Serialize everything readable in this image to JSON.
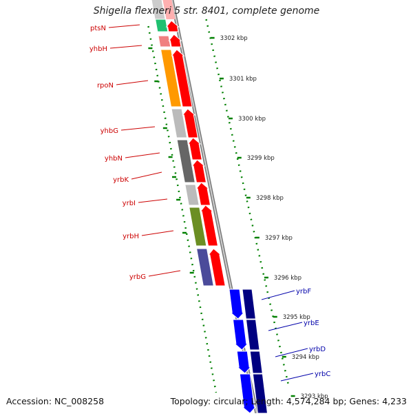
{
  "title": "Shigella flexneri 5 str. 8401, complete genome",
  "footer": {
    "accession": "Accession: NC_008258",
    "stats": "Topology: circular; Length: 4,574,284 bp; Genes: 4,233"
  },
  "colors": {
    "reverse_strand": "#ff0000",
    "forward_strand": "#0000ff",
    "forward_strand_dark": "#000080",
    "tick": "#008000",
    "reverse_label": "#cc0000",
    "forward_label": "#0000aa"
  },
  "ticks": [
    {
      "label": "3302 kbp"
    },
    {
      "label": "3301 kbp"
    },
    {
      "label": "3300 kbp"
    },
    {
      "label": "3299 kbp"
    },
    {
      "label": "3298 kbp"
    },
    {
      "label": "3297 kbp"
    },
    {
      "label": "3296 kbp"
    },
    {
      "label": "3295 kbp"
    },
    {
      "label": "3294 kbp"
    },
    {
      "label": "3293 kbp"
    }
  ],
  "genes_reverse": [
    {
      "name": "ptsN",
      "category_color": "#20c070"
    },
    {
      "name": "yhbH",
      "category_color": "#f08080"
    },
    {
      "name": "rpoN",
      "category_color": "#ff9900"
    },
    {
      "name": "yhbG",
      "category_color": "#bbbbbb"
    },
    {
      "name": "yhbN",
      "category_color": "#666666"
    },
    {
      "name": "yrbK",
      "category_color": "#bbbbbb"
    },
    {
      "name": "yrbI",
      "category_color": "#bbbbbb"
    },
    {
      "name": "yrbH",
      "category_color": "#6b8e23"
    },
    {
      "name": "yrbG",
      "category_color": "#4b4b9a"
    }
  ],
  "genes_forward": [
    {
      "name": "yrbF"
    },
    {
      "name": "yrbE"
    },
    {
      "name": "yrbD"
    },
    {
      "name": "yrbC"
    }
  ]
}
